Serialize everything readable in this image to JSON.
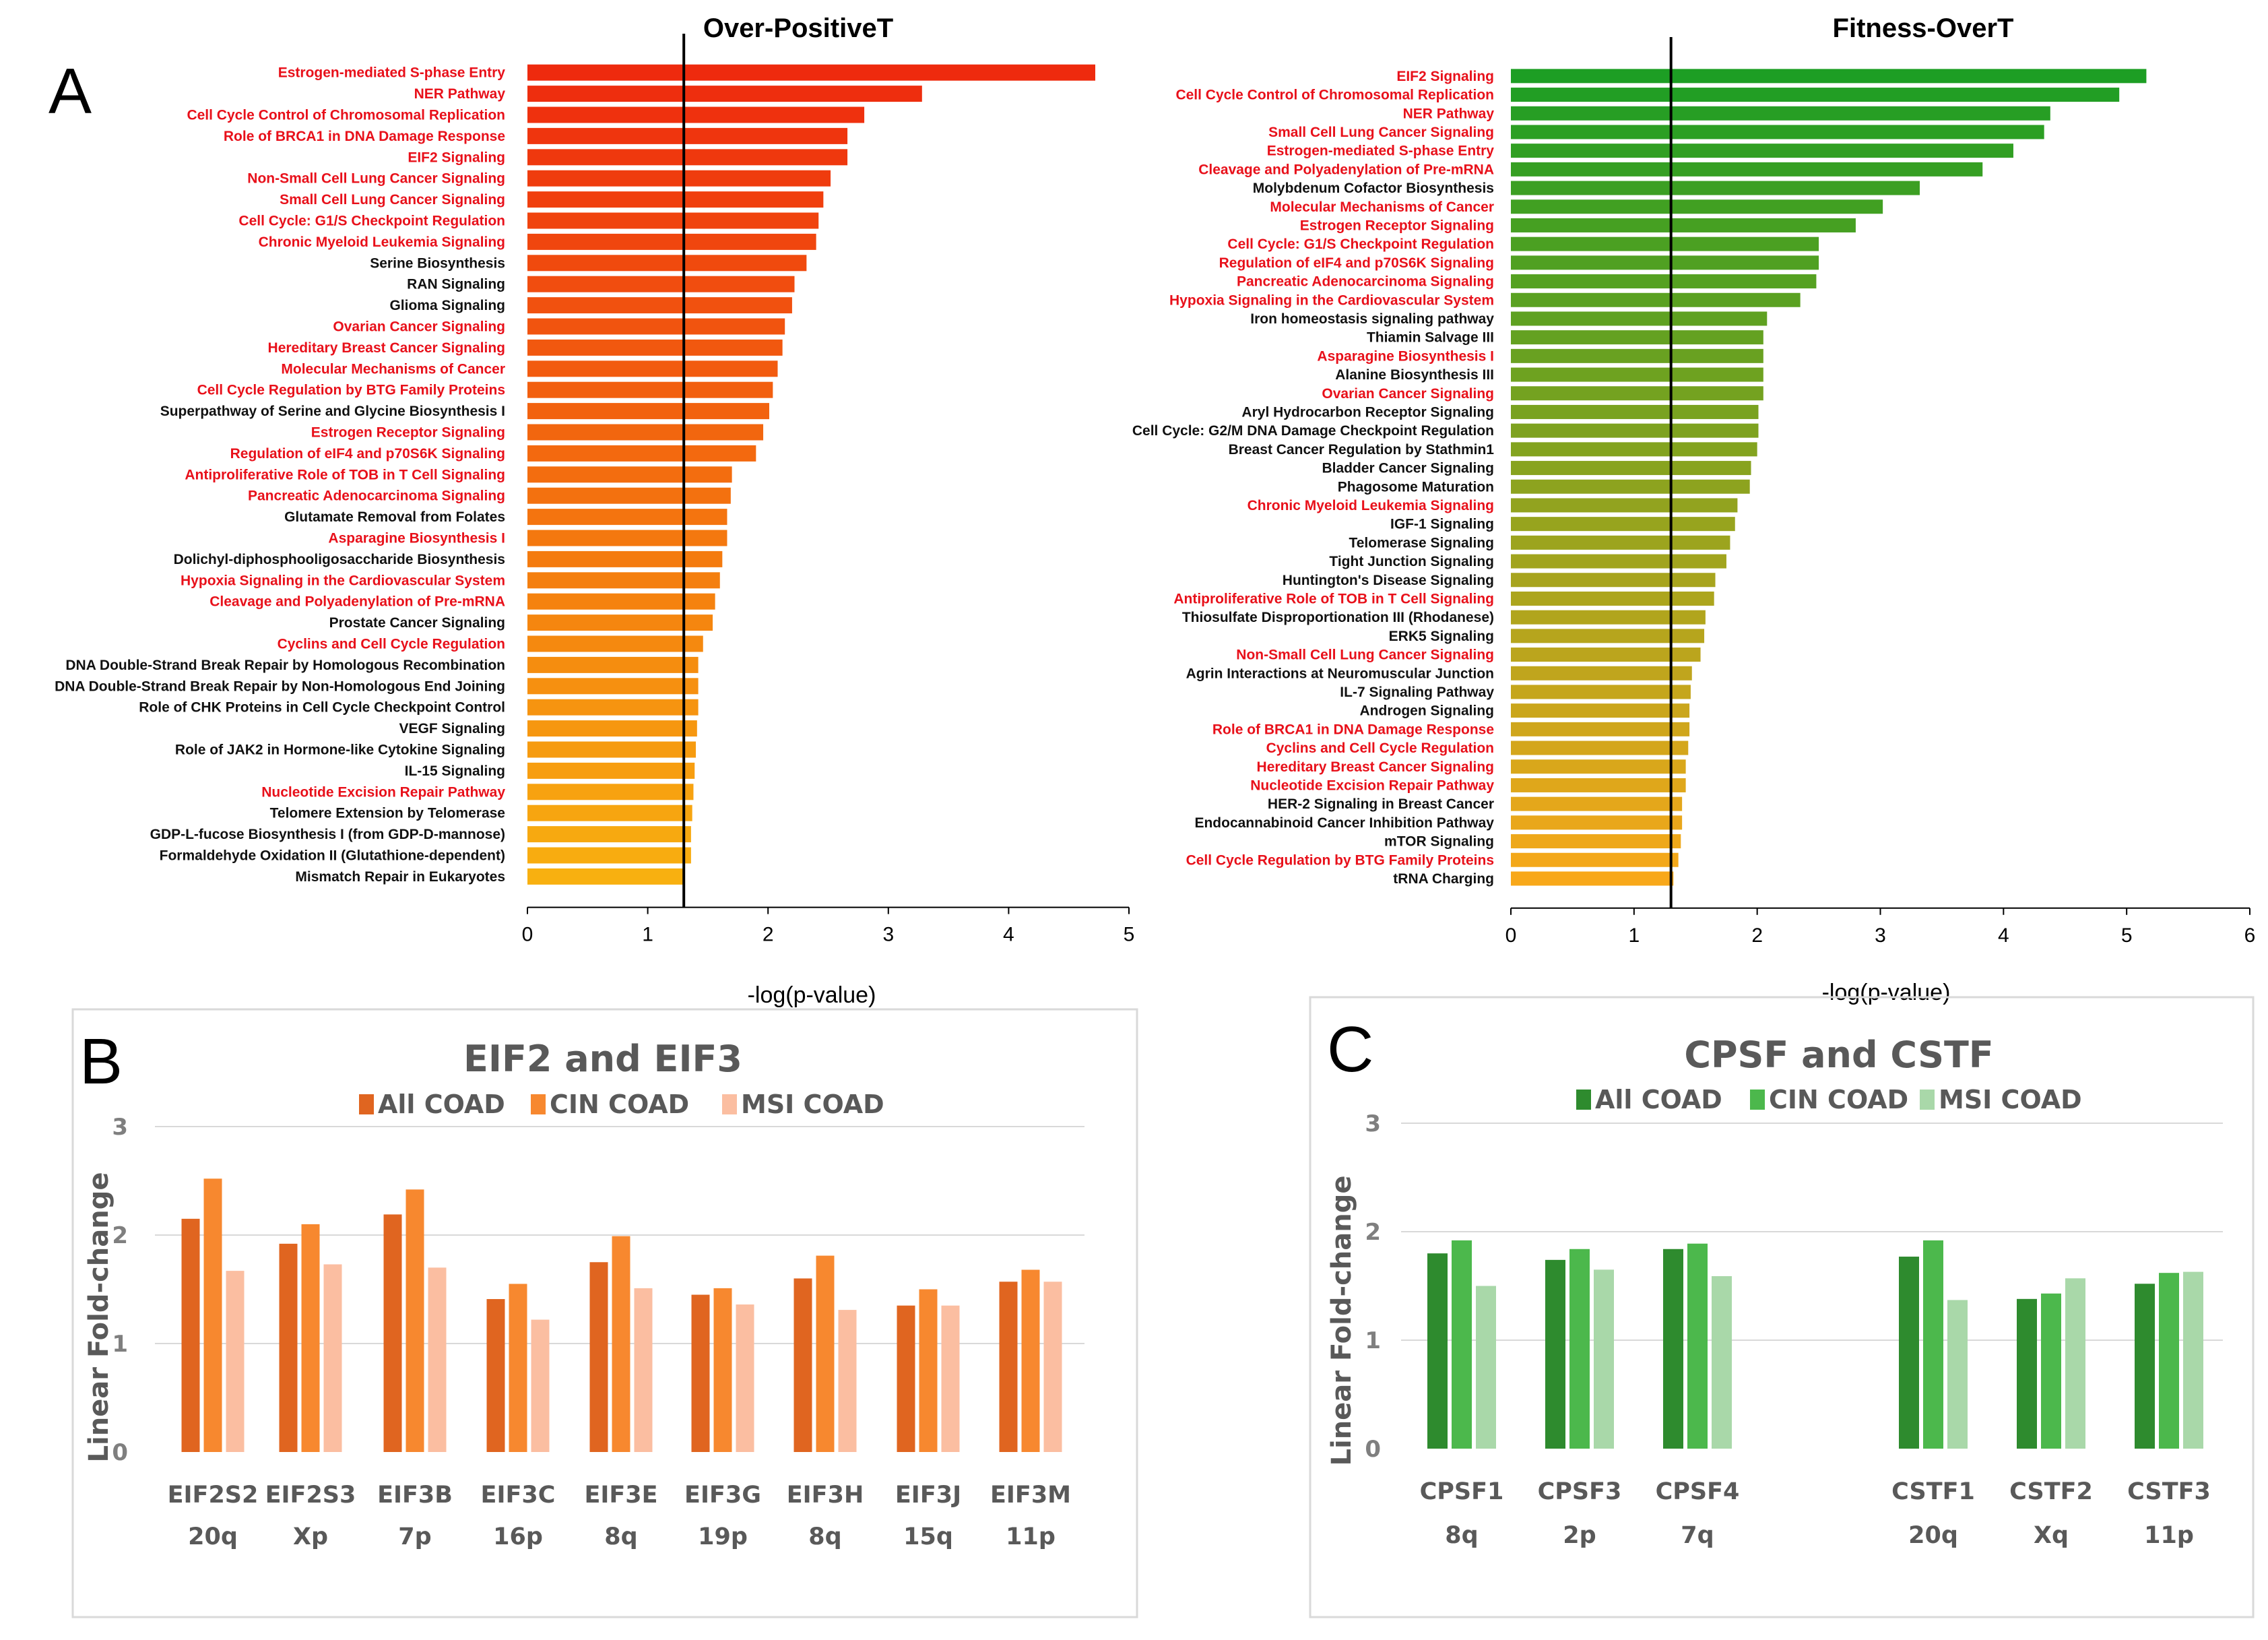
{
  "panel_labels": {
    "a": "A",
    "b": "B",
    "c": "C"
  },
  "chart_data": [
    {
      "id": "A1",
      "type": "bar",
      "orientation": "horizontal",
      "title": "Over-PositiveT",
      "xlabel": "-log(p-value)",
      "xlim": [
        0,
        5
      ],
      "xticks": [
        "0",
        "1",
        "2",
        "3",
        "4",
        "5"
      ],
      "threshold": 1.3,
      "gradient": [
        "#ee2a0e",
        "#f8b010"
      ],
      "terms": [
        {
          "label": "Estrogen-mediated S-phase Entry",
          "value": 4.72,
          "highlight": true
        },
        {
          "label": "NER Pathway",
          "value": 3.28,
          "highlight": true
        },
        {
          "label": "Cell Cycle Control of Chromosomal Replication",
          "value": 2.8,
          "highlight": true
        },
        {
          "label": "Role of BRCA1 in DNA Damage Response",
          "value": 2.66,
          "highlight": true
        },
        {
          "label": "EIF2 Signaling",
          "value": 2.66,
          "highlight": true
        },
        {
          "label": "Non-Small Cell Lung Cancer Signaling",
          "value": 2.52,
          "highlight": true
        },
        {
          "label": "Small Cell Lung Cancer Signaling",
          "value": 2.46,
          "highlight": true
        },
        {
          "label": "Cell Cycle: G1/S Checkpoint Regulation",
          "value": 2.42,
          "highlight": true
        },
        {
          "label": "Chronic Myeloid Leukemia Signaling",
          "value": 2.4,
          "highlight": true
        },
        {
          "label": "Serine Biosynthesis",
          "value": 2.32,
          "highlight": false
        },
        {
          "label": "RAN Signaling",
          "value": 2.22,
          "highlight": false
        },
        {
          "label": "Glioma Signaling",
          "value": 2.2,
          "highlight": false
        },
        {
          "label": "Ovarian Cancer Signaling",
          "value": 2.14,
          "highlight": true
        },
        {
          "label": "Hereditary Breast Cancer Signaling",
          "value": 2.12,
          "highlight": true
        },
        {
          "label": "Molecular Mechanisms of Cancer",
          "value": 2.08,
          "highlight": true
        },
        {
          "label": "Cell Cycle Regulation by BTG Family Proteins",
          "value": 2.04,
          "highlight": true
        },
        {
          "label": "Superpathway of Serine and Glycine Biosynthesis I",
          "value": 2.01,
          "highlight": false
        },
        {
          "label": "Estrogen Receptor Signaling",
          "value": 1.96,
          "highlight": true
        },
        {
          "label": "Regulation of eIF4 and p70S6K Signaling",
          "value": 1.9,
          "highlight": true
        },
        {
          "label": "Antiproliferative Role of TOB in T Cell Signaling",
          "value": 1.7,
          "highlight": true
        },
        {
          "label": "Pancreatic Adenocarcinoma Signaling",
          "value": 1.69,
          "highlight": true
        },
        {
          "label": "Glutamate Removal from Folates",
          "value": 1.66,
          "highlight": false
        },
        {
          "label": "Asparagine Biosynthesis I",
          "value": 1.66,
          "highlight": true
        },
        {
          "label": "Dolichyl-diphosphooligosaccharide Biosynthesis",
          "value": 1.62,
          "highlight": false
        },
        {
          "label": "Hypoxia Signaling in the Cardiovascular System",
          "value": 1.6,
          "highlight": true
        },
        {
          "label": "Cleavage and Polyadenylation of Pre-mRNA",
          "value": 1.56,
          "highlight": true
        },
        {
          "label": "Prostate Cancer Signaling",
          "value": 1.54,
          "highlight": false
        },
        {
          "label": "Cyclins and Cell Cycle Regulation",
          "value": 1.46,
          "highlight": true
        },
        {
          "label": "DNA Double-Strand Break Repair by Homologous Recombination",
          "value": 1.42,
          "highlight": false
        },
        {
          "label": "DNA Double-Strand Break Repair by Non-Homologous End Joining",
          "value": 1.42,
          "highlight": false
        },
        {
          "label": "Role of CHK Proteins in Cell Cycle Checkpoint Control",
          "value": 1.42,
          "highlight": false
        },
        {
          "label": "VEGF Signaling",
          "value": 1.41,
          "highlight": false
        },
        {
          "label": "Role of JAK2 in Hormone-like Cytokine Signaling",
          "value": 1.4,
          "highlight": false
        },
        {
          "label": "IL-15 Signaling",
          "value": 1.39,
          "highlight": false
        },
        {
          "label": "Nucleotide Excision Repair Pathway",
          "value": 1.38,
          "highlight": true
        },
        {
          "label": "Telomere Extension by Telomerase",
          "value": 1.37,
          "highlight": false
        },
        {
          "label": "GDP-L-fucose Biosynthesis I (from GDP-D-mannose)",
          "value": 1.36,
          "highlight": false
        },
        {
          "label": "Formaldehyde Oxidation II (Glutathione-dependent)",
          "value": 1.36,
          "highlight": false
        },
        {
          "label": "Mismatch Repair in Eukaryotes",
          "value": 1.3,
          "highlight": false
        }
      ]
    },
    {
      "id": "A2",
      "type": "bar",
      "orientation": "horizontal",
      "title": "Fitness-OverT",
      "xlabel": "-log(p-value)",
      "xlim": [
        0,
        6
      ],
      "xticks": [
        "0",
        "1",
        "2",
        "3",
        "4",
        "5",
        "6"
      ],
      "threshold": 1.3,
      "gradient": [
        "#1d9e24",
        "#f8a81a"
      ],
      "terms": [
        {
          "label": "EIF2 Signaling",
          "value": 5.16,
          "highlight": true
        },
        {
          "label": "Cell Cycle Control of Chromosomal Replication",
          "value": 4.94,
          "highlight": true
        },
        {
          "label": "NER Pathway",
          "value": 4.38,
          "highlight": true
        },
        {
          "label": "Small Cell Lung Cancer Signaling",
          "value": 4.33,
          "highlight": true
        },
        {
          "label": "Estrogen-mediated S-phase Entry",
          "value": 4.08,
          "highlight": true
        },
        {
          "label": "Cleavage and Polyadenylation of Pre-mRNA",
          "value": 3.83,
          "highlight": true
        },
        {
          "label": "Molybdenum Cofactor Biosynthesis",
          "value": 3.32,
          "highlight": false
        },
        {
          "label": "Molecular Mechanisms of Cancer",
          "value": 3.02,
          "highlight": true
        },
        {
          "label": "Estrogen Receptor Signaling",
          "value": 2.8,
          "highlight": true
        },
        {
          "label": "Cell Cycle: G1/S Checkpoint Regulation",
          "value": 2.5,
          "highlight": true
        },
        {
          "label": "Regulation of eIF4 and p70S6K Signaling",
          "value": 2.5,
          "highlight": true
        },
        {
          "label": "Pancreatic Adenocarcinoma Signaling",
          "value": 2.48,
          "highlight": true
        },
        {
          "label": "Hypoxia Signaling in the Cardiovascular System",
          "value": 2.35,
          "highlight": true
        },
        {
          "label": "Iron homeostasis signaling pathway",
          "value": 2.08,
          "highlight": false
        },
        {
          "label": "Thiamin Salvage III",
          "value": 2.05,
          "highlight": false
        },
        {
          "label": "Asparagine Biosynthesis I",
          "value": 2.05,
          "highlight": true
        },
        {
          "label": "Alanine Biosynthesis III",
          "value": 2.05,
          "highlight": false
        },
        {
          "label": "Ovarian Cancer Signaling",
          "value": 2.05,
          "highlight": true
        },
        {
          "label": "Aryl Hydrocarbon Receptor Signaling",
          "value": 2.01,
          "highlight": false
        },
        {
          "label": "Cell Cycle: G2/M DNA Damage Checkpoint Regulation",
          "value": 2.01,
          "highlight": false
        },
        {
          "label": "Breast Cancer Regulation by Stathmin1",
          "value": 2.0,
          "highlight": false
        },
        {
          "label": "Bladder Cancer Signaling",
          "value": 1.95,
          "highlight": false
        },
        {
          "label": "Phagosome Maturation",
          "value": 1.94,
          "highlight": false
        },
        {
          "label": "Chronic Myeloid Leukemia Signaling",
          "value": 1.84,
          "highlight": true
        },
        {
          "label": "IGF-1 Signaling",
          "value": 1.82,
          "highlight": false
        },
        {
          "label": "Telomerase Signaling",
          "value": 1.78,
          "highlight": false
        },
        {
          "label": "Tight Junction Signaling",
          "value": 1.75,
          "highlight": false
        },
        {
          "label": "Huntington's Disease Signaling",
          "value": 1.66,
          "highlight": false
        },
        {
          "label": "Antiproliferative Role of TOB in T Cell Signaling",
          "value": 1.65,
          "highlight": true
        },
        {
          "label": "Thiosulfate Disproportionation III (Rhodanese)",
          "value": 1.58,
          "highlight": false
        },
        {
          "label": "ERK5 Signaling",
          "value": 1.57,
          "highlight": false
        },
        {
          "label": "Non-Small Cell Lung Cancer Signaling",
          "value": 1.54,
          "highlight": true
        },
        {
          "label": "Agrin Interactions at Neuromuscular Junction",
          "value": 1.47,
          "highlight": false
        },
        {
          "label": "IL-7 Signaling Pathway",
          "value": 1.46,
          "highlight": false
        },
        {
          "label": "Androgen Signaling",
          "value": 1.45,
          "highlight": false
        },
        {
          "label": "Role of BRCA1 in DNA Damage Response",
          "value": 1.45,
          "highlight": true
        },
        {
          "label": "Cyclins and Cell Cycle Regulation",
          "value": 1.44,
          "highlight": true
        },
        {
          "label": "Hereditary Breast Cancer Signaling",
          "value": 1.42,
          "highlight": true
        },
        {
          "label": "Nucleotide Excision Repair Pathway",
          "value": 1.42,
          "highlight": true
        },
        {
          "label": "HER-2 Signaling in Breast Cancer",
          "value": 1.39,
          "highlight": false
        },
        {
          "label": "Endocannabinoid Cancer Inhibition Pathway",
          "value": 1.39,
          "highlight": false
        },
        {
          "label": "mTOR Signaling",
          "value": 1.38,
          "highlight": false
        },
        {
          "label": "Cell Cycle Regulation by BTG Family Proteins",
          "value": 1.36,
          "highlight": true
        },
        {
          "label": "tRNA Charging",
          "value": 1.32,
          "highlight": false
        }
      ]
    },
    {
      "id": "B",
      "type": "bar",
      "title": "EIF2 and EIF3",
      "ylabel": "Linear Fold-change",
      "ylim": [
        0,
        3
      ],
      "yticks": [
        "0",
        "1",
        "2",
        "3"
      ],
      "categories": [
        [
          "EIF2S2",
          "20q"
        ],
        [
          "EIF2S3",
          "Xp"
        ],
        [
          "EIF3B",
          "7p"
        ],
        [
          "EIF3C",
          "16p"
        ],
        [
          "EIF3E",
          "8q"
        ],
        [
          "EIF3G",
          "19p"
        ],
        [
          "EIF3H",
          "8q"
        ],
        [
          "EIF3J",
          "15q"
        ],
        [
          "EIF3M",
          "11p"
        ]
      ],
      "series": [
        {
          "name": "All COAD",
          "color": "#e06520",
          "values": [
            2.15,
            1.92,
            2.19,
            1.41,
            1.75,
            1.45,
            1.6,
            1.35,
            1.57
          ]
        },
        {
          "name": "CIN COAD",
          "color": "#f7882f",
          "values": [
            2.52,
            2.1,
            2.42,
            1.55,
            1.99,
            1.51,
            1.81,
            1.5,
            1.68
          ]
        },
        {
          "name": "MSI COAD",
          "color": "#fbbea1",
          "values": [
            1.67,
            1.73,
            1.7,
            1.22,
            1.51,
            1.36,
            1.31,
            1.35,
            1.57
          ]
        }
      ]
    },
    {
      "id": "C",
      "type": "bar",
      "title": "CPSF and CSTF",
      "ylabel": "Linear Fold-change",
      "ylim": [
        0,
        3
      ],
      "yticks": [
        "0",
        "1",
        "2",
        "3"
      ],
      "categories": [
        [
          "CPSF1",
          "8q"
        ],
        [
          "CPSF3",
          "2p"
        ],
        [
          "CPSF4",
          "7q"
        ],
        [
          "",
          ""
        ],
        [
          "CSTF1",
          "20q"
        ],
        [
          "CSTF2",
          "Xq"
        ],
        [
          "CSTF3",
          "11p"
        ]
      ],
      "series": [
        {
          "name": "All COAD",
          "color": "#2e8b2e",
          "values": [
            1.8,
            1.74,
            1.84,
            null,
            1.77,
            1.38,
            1.52
          ]
        },
        {
          "name": "CIN COAD",
          "color": "#4cb84c",
          "values": [
            1.92,
            1.84,
            1.89,
            null,
            1.92,
            1.43,
            1.62
          ]
        },
        {
          "name": "MSI COAD",
          "color": "#a9d8a9",
          "values": [
            1.5,
            1.65,
            1.59,
            null,
            1.37,
            1.57,
            1.63
          ]
        }
      ]
    }
  ]
}
